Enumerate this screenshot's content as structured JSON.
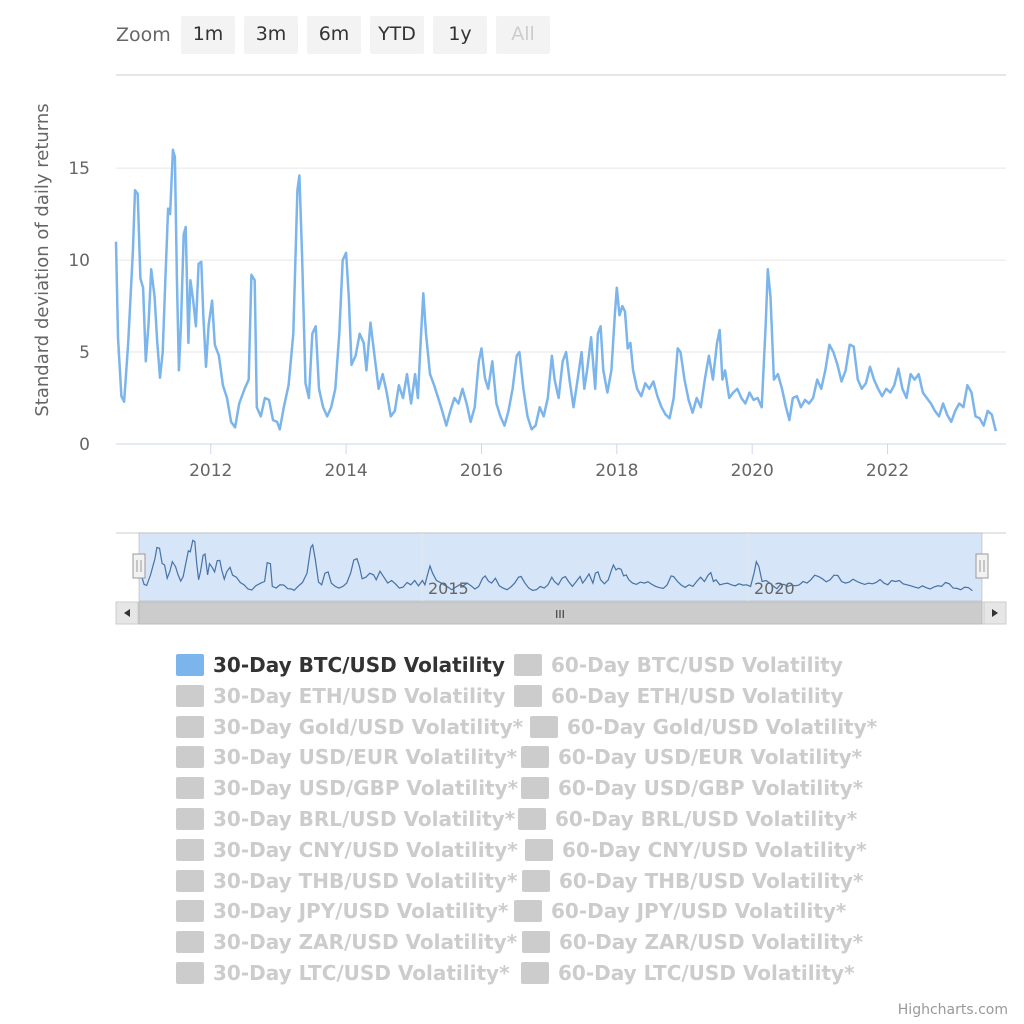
{
  "zoom": {
    "label": "Zoom",
    "buttons": [
      {
        "label": "1m",
        "disabled": false
      },
      {
        "label": "3m",
        "disabled": false
      },
      {
        "label": "6m",
        "disabled": false
      },
      {
        "label": "YTD",
        "disabled": false
      },
      {
        "label": "1y",
        "disabled": false
      },
      {
        "label": "All",
        "disabled": true
      }
    ]
  },
  "chart_data": {
    "type": "line",
    "ylabel": "Standard deviation of daily returns",
    "ylim": [
      0,
      18
    ],
    "xlim": [
      2010.6,
      2023.75
    ],
    "y_ticks": [
      "0",
      "5",
      "10",
      "15"
    ],
    "x_ticks": [
      "2012",
      "2014",
      "2016",
      "2018",
      "2020",
      "2022"
    ],
    "navigator_x_ticks": [
      "2015",
      "2020"
    ],
    "grid": true,
    "series": [
      {
        "name": "30-Day BTC/USD Volatility",
        "color": "#7cb5ec",
        "points": [
          [
            2010.6,
            11.0
          ],
          [
            2010.63,
            5.8
          ],
          [
            2010.68,
            2.6
          ],
          [
            2010.72,
            2.3
          ],
          [
            2010.78,
            5.5
          ],
          [
            2010.85,
            10.5
          ],
          [
            2010.88,
            13.8
          ],
          [
            2010.92,
            13.6
          ],
          [
            2010.96,
            9.0
          ],
          [
            2011.0,
            8.5
          ],
          [
            2011.04,
            4.5
          ],
          [
            2011.08,
            6.5
          ],
          [
            2011.12,
            9.5
          ],
          [
            2011.17,
            8.0
          ],
          [
            2011.21,
            5.5
          ],
          [
            2011.25,
            3.6
          ],
          [
            2011.29,
            5.0
          ],
          [
            2011.33,
            9.0
          ],
          [
            2011.37,
            12.8
          ],
          [
            2011.4,
            12.5
          ],
          [
            2011.44,
            16.0
          ],
          [
            2011.47,
            15.6
          ],
          [
            2011.5,
            9.0
          ],
          [
            2011.53,
            4.0
          ],
          [
            2011.56,
            6.5
          ],
          [
            2011.6,
            11.4
          ],
          [
            2011.63,
            11.8
          ],
          [
            2011.67,
            5.5
          ],
          [
            2011.7,
            8.9
          ],
          [
            2011.74,
            7.8
          ],
          [
            2011.78,
            6.4
          ],
          [
            2011.82,
            9.8
          ],
          [
            2011.86,
            9.9
          ],
          [
            2011.89,
            7.0
          ],
          [
            2011.93,
            4.2
          ],
          [
            2011.97,
            6.5
          ],
          [
            2012.02,
            7.8
          ],
          [
            2012.06,
            5.4
          ],
          [
            2012.12,
            4.8
          ],
          [
            2012.18,
            3.2
          ],
          [
            2012.24,
            2.5
          ],
          [
            2012.3,
            1.2
          ],
          [
            2012.36,
            0.9
          ],
          [
            2012.42,
            2.2
          ],
          [
            2012.5,
            3.0
          ],
          [
            2012.56,
            3.5
          ],
          [
            2012.6,
            9.2
          ],
          [
            2012.65,
            8.9
          ],
          [
            2012.68,
            2.0
          ],
          [
            2012.74,
            1.5
          ],
          [
            2012.8,
            2.5
          ],
          [
            2012.86,
            2.4
          ],
          [
            2012.92,
            1.3
          ],
          [
            2012.98,
            1.2
          ],
          [
            2013.02,
            0.8
          ],
          [
            2013.08,
            2.0
          ],
          [
            2013.15,
            3.2
          ],
          [
            2013.22,
            6.0
          ],
          [
            2013.28,
            13.8
          ],
          [
            2013.31,
            14.6
          ],
          [
            2013.35,
            10.2
          ],
          [
            2013.4,
            3.3
          ],
          [
            2013.45,
            2.5
          ],
          [
            2013.5,
            6.0
          ],
          [
            2013.55,
            6.4
          ],
          [
            2013.6,
            3.0
          ],
          [
            2013.66,
            2.0
          ],
          [
            2013.72,
            1.5
          ],
          [
            2013.78,
            2.0
          ],
          [
            2013.84,
            3.0
          ],
          [
            2013.9,
            6.0
          ],
          [
            2013.95,
            10.0
          ],
          [
            2014.0,
            10.4
          ],
          [
            2014.04,
            8.0
          ],
          [
            2014.08,
            4.3
          ],
          [
            2014.14,
            4.8
          ],
          [
            2014.2,
            6.0
          ],
          [
            2014.26,
            5.5
          ],
          [
            2014.3,
            4.0
          ],
          [
            2014.36,
            6.6
          ],
          [
            2014.42,
            4.8
          ],
          [
            2014.48,
            3.0
          ],
          [
            2014.54,
            3.8
          ],
          [
            2014.6,
            2.8
          ],
          [
            2014.66,
            1.5
          ],
          [
            2014.72,
            1.8
          ],
          [
            2014.78,
            3.2
          ],
          [
            2014.84,
            2.5
          ],
          [
            2014.9,
            3.8
          ],
          [
            2014.96,
            2.2
          ],
          [
            2015.02,
            3.8
          ],
          [
            2015.06,
            2.5
          ],
          [
            2015.1,
            5.5
          ],
          [
            2015.14,
            8.2
          ],
          [
            2015.18,
            6.0
          ],
          [
            2015.24,
            3.8
          ],
          [
            2015.3,
            3.2
          ],
          [
            2015.36,
            2.5
          ],
          [
            2015.42,
            1.8
          ],
          [
            2015.48,
            1.0
          ],
          [
            2015.54,
            1.8
          ],
          [
            2015.6,
            2.5
          ],
          [
            2015.66,
            2.2
          ],
          [
            2015.72,
            3.0
          ],
          [
            2015.78,
            2.2
          ],
          [
            2015.84,
            1.2
          ],
          [
            2015.9,
            2.0
          ],
          [
            2015.96,
            4.5
          ],
          [
            2016.0,
            5.2
          ],
          [
            2016.05,
            3.6
          ],
          [
            2016.1,
            3.0
          ],
          [
            2016.16,
            4.5
          ],
          [
            2016.22,
            2.2
          ],
          [
            2016.28,
            1.5
          ],
          [
            2016.34,
            1.0
          ],
          [
            2016.4,
            1.8
          ],
          [
            2016.46,
            3.0
          ],
          [
            2016.52,
            4.8
          ],
          [
            2016.56,
            5.0
          ],
          [
            2016.62,
            3.0
          ],
          [
            2016.68,
            1.5
          ],
          [
            2016.74,
            0.8
          ],
          [
            2016.8,
            1.0
          ],
          [
            2016.86,
            2.0
          ],
          [
            2016.92,
            1.5
          ],
          [
            2016.98,
            2.5
          ],
          [
            2017.04,
            4.8
          ],
          [
            2017.08,
            3.5
          ],
          [
            2017.14,
            2.5
          ],
          [
            2017.2,
            4.5
          ],
          [
            2017.25,
            5.0
          ],
          [
            2017.3,
            3.5
          ],
          [
            2017.36,
            2.0
          ],
          [
            2017.42,
            3.5
          ],
          [
            2017.48,
            5.0
          ],
          [
            2017.52,
            3.0
          ],
          [
            2017.56,
            4.0
          ],
          [
            2017.62,
            5.8
          ],
          [
            2017.68,
            3.0
          ],
          [
            2017.72,
            6.0
          ],
          [
            2017.76,
            6.4
          ],
          [
            2017.8,
            4.0
          ],
          [
            2017.86,
            2.8
          ],
          [
            2017.92,
            4.0
          ],
          [
            2017.97,
            7.0
          ],
          [
            2018.0,
            8.5
          ],
          [
            2018.04,
            7.0
          ],
          [
            2018.08,
            7.5
          ],
          [
            2018.12,
            7.2
          ],
          [
            2018.16,
            5.2
          ],
          [
            2018.2,
            5.5
          ],
          [
            2018.24,
            4.0
          ],
          [
            2018.3,
            3.0
          ],
          [
            2018.36,
            2.6
          ],
          [
            2018.42,
            3.3
          ],
          [
            2018.48,
            3.0
          ],
          [
            2018.54,
            3.4
          ],
          [
            2018.6,
            2.6
          ],
          [
            2018.66,
            2.0
          ],
          [
            2018.72,
            1.6
          ],
          [
            2018.78,
            1.4
          ],
          [
            2018.84,
            2.5
          ],
          [
            2018.9,
            5.2
          ],
          [
            2018.94,
            5.0
          ],
          [
            2019.0,
            3.5
          ],
          [
            2019.06,
            2.4
          ],
          [
            2019.12,
            1.7
          ],
          [
            2019.18,
            2.5
          ],
          [
            2019.24,
            2.0
          ],
          [
            2019.3,
            3.5
          ],
          [
            2019.36,
            4.8
          ],
          [
            2019.42,
            3.5
          ],
          [
            2019.48,
            5.5
          ],
          [
            2019.52,
            6.2
          ],
          [
            2019.56,
            3.5
          ],
          [
            2019.6,
            4.0
          ],
          [
            2019.66,
            2.5
          ],
          [
            2019.72,
            2.8
          ],
          [
            2019.78,
            3.0
          ],
          [
            2019.84,
            2.5
          ],
          [
            2019.9,
            2.2
          ],
          [
            2019.96,
            2.8
          ],
          [
            2020.02,
            2.4
          ],
          [
            2020.08,
            2.5
          ],
          [
            2020.14,
            2.0
          ],
          [
            2020.2,
            6.5
          ],
          [
            2020.23,
            9.5
          ],
          [
            2020.27,
            8.0
          ],
          [
            2020.32,
            3.5
          ],
          [
            2020.38,
            3.8
          ],
          [
            2020.44,
            3.0
          ],
          [
            2020.5,
            2.0
          ],
          [
            2020.55,
            1.3
          ],
          [
            2020.6,
            2.5
          ],
          [
            2020.66,
            2.6
          ],
          [
            2020.72,
            2.0
          ],
          [
            2020.78,
            2.4
          ],
          [
            2020.84,
            2.2
          ],
          [
            2020.9,
            2.5
          ],
          [
            2020.96,
            3.5
          ],
          [
            2021.02,
            3.0
          ],
          [
            2021.08,
            4.0
          ],
          [
            2021.14,
            5.4
          ],
          [
            2021.2,
            5.0
          ],
          [
            2021.26,
            4.3
          ],
          [
            2021.32,
            3.4
          ],
          [
            2021.38,
            4.0
          ],
          [
            2021.44,
            5.4
          ],
          [
            2021.5,
            5.3
          ],
          [
            2021.56,
            3.5
          ],
          [
            2021.62,
            3.0
          ],
          [
            2021.68,
            3.3
          ],
          [
            2021.74,
            4.2
          ],
          [
            2021.8,
            3.5
          ],
          [
            2021.86,
            3.0
          ],
          [
            2021.92,
            2.6
          ],
          [
            2021.98,
            3.0
          ],
          [
            2022.04,
            2.8
          ],
          [
            2022.1,
            3.2
          ],
          [
            2022.16,
            4.1
          ],
          [
            2022.22,
            3.0
          ],
          [
            2022.28,
            2.5
          ],
          [
            2022.34,
            3.8
          ],
          [
            2022.4,
            3.5
          ],
          [
            2022.46,
            3.8
          ],
          [
            2022.52,
            2.8
          ],
          [
            2022.58,
            2.5
          ],
          [
            2022.64,
            2.2
          ],
          [
            2022.7,
            1.8
          ],
          [
            2022.76,
            1.5
          ],
          [
            2022.82,
            2.2
          ],
          [
            2022.88,
            1.6
          ],
          [
            2022.94,
            1.2
          ],
          [
            2023.0,
            1.8
          ],
          [
            2023.06,
            2.2
          ],
          [
            2023.12,
            2.0
          ],
          [
            2023.18,
            3.2
          ],
          [
            2023.24,
            2.8
          ],
          [
            2023.3,
            1.5
          ],
          [
            2023.36,
            1.4
          ],
          [
            2023.42,
            1.0
          ],
          [
            2023.48,
            1.8
          ],
          [
            2023.54,
            1.6
          ],
          [
            2023.6,
            0.7
          ]
        ]
      }
    ]
  },
  "legend": {
    "items": [
      {
        "label": "30-Day BTC/USD Volatility",
        "active": true
      },
      {
        "label": "60-Day BTC/USD Volatility",
        "active": false
      },
      {
        "label": "30-Day ETH/USD Volatility",
        "active": false
      },
      {
        "label": "60-Day ETH/USD Volatility",
        "active": false
      },
      {
        "label": "30-Day Gold/USD Volatility*",
        "active": false
      },
      {
        "label": "60-Day Gold/USD Volatility*",
        "active": false
      },
      {
        "label": "30-Day USD/EUR Volatility*",
        "active": false
      },
      {
        "label": "60-Day USD/EUR Volatility*",
        "active": false
      },
      {
        "label": "30-Day USD/GBP Volatility*",
        "active": false
      },
      {
        "label": "60-Day USD/GBP Volatility*",
        "active": false
      },
      {
        "label": "30-Day BRL/USD Volatility*",
        "active": false
      },
      {
        "label": "60-Day BRL/USD Volatility*",
        "active": false
      },
      {
        "label": "30-Day CNY/USD Volatility*",
        "active": false
      },
      {
        "label": "60-Day CNY/USD Volatility*",
        "active": false
      },
      {
        "label": "30-Day THB/USD Volatility*",
        "active": false
      },
      {
        "label": "60-Day THB/USD Volatility*",
        "active": false
      },
      {
        "label": "30-Day JPY/USD Volatility*",
        "active": false
      },
      {
        "label": "60-Day JPY/USD Volatility*",
        "active": false
      },
      {
        "label": "30-Day ZAR/USD Volatility*",
        "active": false
      },
      {
        "label": "60-Day ZAR/USD Volatility*",
        "active": false
      },
      {
        "label": "30-Day LTC/USD Volatility*",
        "active": false
      },
      {
        "label": "60-Day LTC/USD Volatility*",
        "active": false
      }
    ]
  },
  "navigator": {
    "scrollbar_grip": "III"
  },
  "credits": "Highcharts.com"
}
